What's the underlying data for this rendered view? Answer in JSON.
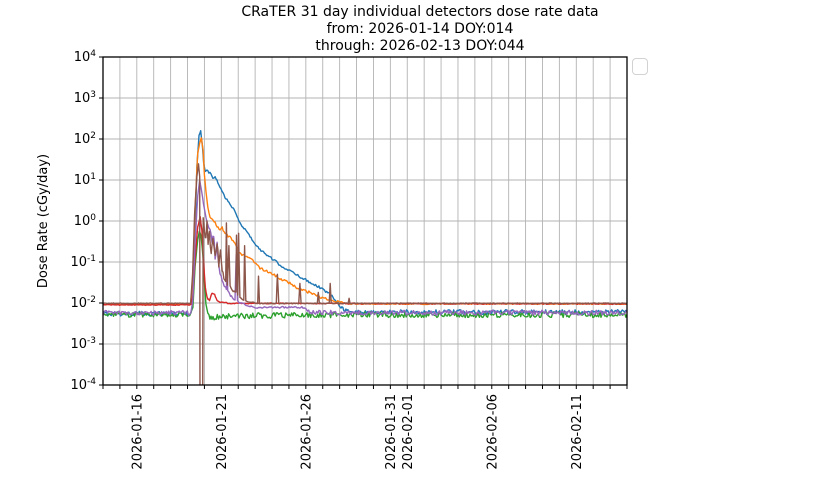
{
  "figure": {
    "title_line1": "CRaTER 31 day individual detectors dose rate data",
    "title_line2": "from: 2026-01-14 DOY:014",
    "title_line3": "through: 2026-02-13 DOY:044"
  },
  "legend": {
    "visible": true,
    "entries": []
  },
  "chart_data": {
    "type": "line",
    "title": "CRaTER 31 day individual detectors dose rate data from: 2026-01-14 DOY:014 through: 2026-02-13 DOY:044",
    "xlabel": "",
    "ylabel": "Dose Rate (cGy/day)",
    "yscale": "log",
    "ylim": [
      0.0001,
      10000
    ],
    "y_tick_exponents": [
      4,
      3,
      2,
      1,
      0,
      -1,
      -2,
      -3,
      -4
    ],
    "x_unit": "days since 2026-01-14 00:00",
    "xlim": [
      0,
      31
    ],
    "x_grid_interval_days": 1,
    "x_ticks": [
      {
        "day": 2,
        "label": "2026-01-16"
      },
      {
        "day": 7,
        "label": "2026-01-21"
      },
      {
        "day": 12,
        "label": "2026-01-26"
      },
      {
        "day": 17,
        "label": "2026-01-31"
      },
      {
        "day": 18,
        "label": "2026-02-01"
      },
      {
        "day": 23,
        "label": "2026-02-06"
      },
      {
        "day": 28,
        "label": "2026-02-11"
      }
    ],
    "grid": true,
    "grid_color": "#b3b3b3",
    "legend_position": "outside-top-right-empty",
    "event": {
      "description_visible_in_pixels": "solar energetic particle enhancement beginning near 2026-01-19 with peak near 2026-01-19/20, decaying to background by about 2026-01-29",
      "onset_day": 5.2,
      "peak_day": 5.8
    },
    "series": [
      {
        "name": "detector-line-blue",
        "color": "#1f77b4",
        "points": [
          [
            0,
            0.0055,
            0.06
          ],
          [
            5.2,
            0.0055,
            0.06
          ],
          [
            5.3,
            0.01,
            0.02
          ],
          [
            5.45,
            0.5,
            0.01
          ],
          [
            5.55,
            20,
            0.01
          ],
          [
            5.68,
            120,
            0.01
          ],
          [
            5.78,
            160,
            0.01
          ],
          [
            5.88,
            70,
            0.02
          ],
          [
            5.95,
            28,
            0.02
          ],
          [
            6.05,
            17,
            0.03
          ],
          [
            6.2,
            16,
            0.03
          ],
          [
            6.33,
            15,
            0.02
          ],
          [
            6.5,
            11,
            0.02
          ],
          [
            6.63,
            12,
            0.02
          ],
          [
            6.8,
            8.5,
            0.03
          ],
          [
            6.92,
            6.6,
            0.02
          ],
          [
            7.22,
            3.8,
            0.02
          ],
          [
            7.51,
            2.6,
            0.02
          ],
          [
            7.81,
            1.7,
            0.02
          ],
          [
            8.1,
            0.88,
            0.02
          ],
          [
            8.4,
            0.63,
            0.02
          ],
          [
            8.7,
            0.42,
            0.02
          ],
          [
            8.99,
            0.28,
            0.02
          ],
          [
            9.29,
            0.2,
            0.02
          ],
          [
            9.88,
            0.13,
            0.03
          ],
          [
            10.47,
            0.085,
            0.03
          ],
          [
            11.06,
            0.06,
            0.03
          ],
          [
            11.65,
            0.044,
            0.03
          ],
          [
            12.25,
            0.032,
            0.03
          ],
          [
            12.84,
            0.024,
            0.03
          ],
          [
            13.43,
            0.016,
            0.04
          ],
          [
            13.72,
            0.013,
            0.04
          ],
          [
            14.02,
            0.0085,
            0.04
          ],
          [
            14.31,
            0.0068,
            0.05
          ],
          [
            14.61,
            0.006,
            0.06
          ],
          [
            31,
            0.006,
            0.06
          ]
        ]
      },
      {
        "name": "detector-line-orange",
        "color": "#ff7f0e",
        "points": [
          [
            0,
            0.0092,
            0.012
          ],
          [
            5.18,
            0.0092,
            0.012
          ],
          [
            5.3,
            0.03,
            0.01
          ],
          [
            5.45,
            2,
            0.01
          ],
          [
            5.6,
            45,
            0.01
          ],
          [
            5.72,
            80,
            0.01
          ],
          [
            5.82,
            105,
            0.01
          ],
          [
            5.92,
            55,
            0.01
          ],
          [
            6.0,
            14,
            0.02
          ],
          [
            6.09,
            5.5,
            0.02
          ],
          [
            6.2,
            2.2,
            0.02
          ],
          [
            6.33,
            1.26,
            0.02
          ],
          [
            6.63,
            0.95,
            0.03
          ],
          [
            6.75,
            0.75,
            0.03
          ],
          [
            6.92,
            0.62,
            0.03
          ],
          [
            7.05,
            0.68,
            0.03
          ],
          [
            7.22,
            0.48,
            0.03
          ],
          [
            7.51,
            0.4,
            0.03
          ],
          [
            7.81,
            0.3,
            0.03
          ],
          [
            8.1,
            0.16,
            0.03
          ],
          [
            8.4,
            0.14,
            0.03
          ],
          [
            8.7,
            0.12,
            0.03
          ],
          [
            8.99,
            0.1,
            0.03
          ],
          [
            9.29,
            0.07,
            0.03
          ],
          [
            9.88,
            0.055,
            0.03
          ],
          [
            10.47,
            0.04,
            0.03
          ],
          [
            11.06,
            0.03,
            0.03
          ],
          [
            11.65,
            0.021,
            0.03
          ],
          [
            12.25,
            0.018,
            0.03
          ],
          [
            12.84,
            0.014,
            0.03
          ],
          [
            13.43,
            0.012,
            0.03
          ],
          [
            14.02,
            0.0105,
            0.02
          ],
          [
            14.61,
            0.0095,
            0.012
          ],
          [
            31,
            0.0095,
            0.012
          ]
        ]
      },
      {
        "name": "detector-line-green",
        "color": "#2ca02c",
        "points": [
          [
            0,
            0.0052,
            0.06
          ],
          [
            5.2,
            0.0052,
            0.06
          ],
          [
            5.32,
            0.008,
            0.02
          ],
          [
            5.45,
            0.08,
            0.01
          ],
          [
            5.6,
            0.35,
            0.01
          ],
          [
            5.7,
            0.55,
            0.01
          ],
          [
            5.8,
            0.45,
            0.01
          ],
          [
            5.92,
            0.12,
            0.02
          ],
          [
            6.0,
            0.03,
            0.02
          ],
          [
            6.09,
            0.009,
            0.03
          ],
          [
            6.2,
            0.0055,
            0.04
          ],
          [
            6.33,
            0.0042,
            0.06
          ],
          [
            6.63,
            0.0046,
            0.07
          ],
          [
            7.5,
            0.0047,
            0.07
          ],
          [
            9,
            0.0049,
            0.07
          ],
          [
            12,
            0.005,
            0.07
          ],
          [
            15,
            0.0052,
            0.07
          ],
          [
            31,
            0.0052,
            0.07
          ]
        ]
      },
      {
        "name": "detector-line-red",
        "color": "#d62728",
        "points": [
          [
            0,
            0.009,
            0.012
          ],
          [
            5.2,
            0.009,
            0.012
          ],
          [
            5.32,
            0.015,
            0.01
          ],
          [
            5.45,
            0.12,
            0.01
          ],
          [
            5.6,
            0.7,
            0.01
          ],
          [
            5.75,
            1.25,
            0.01
          ],
          [
            5.85,
            0.6,
            0.01
          ],
          [
            5.95,
            0.1,
            0.02
          ],
          [
            6.05,
            0.025,
            0.02
          ],
          [
            6.15,
            0.014,
            0.02
          ],
          [
            6.3,
            0.011,
            0.02
          ],
          [
            6.45,
            0.018,
            0.02
          ],
          [
            6.6,
            0.016,
            0.02
          ],
          [
            6.75,
            0.012,
            0.02
          ],
          [
            6.92,
            0.0105,
            0.015
          ],
          [
            7.5,
            0.0098,
            0.012
          ],
          [
            31,
            0.0095,
            0.012
          ]
        ]
      },
      {
        "name": "detector-line-purple",
        "color": "#9467bd",
        "points": [
          [
            0,
            0.0057,
            0.06
          ],
          [
            5.2,
            0.0057,
            0.06
          ],
          [
            5.32,
            0.012,
            0.02
          ],
          [
            5.45,
            0.3,
            0.01
          ],
          [
            5.6,
            4,
            0.01
          ],
          [
            5.72,
            10,
            0.01
          ],
          [
            5.82,
            6,
            0.02
          ],
          [
            5.95,
            2.5,
            0.02
          ],
          [
            6.09,
            1.2,
            0.03
          ],
          [
            6.2,
            0.8,
            0.04
          ],
          [
            6.33,
            0.67,
            0.04
          ],
          [
            6.45,
            0.3,
            0.08
          ],
          [
            6.55,
            0.45,
            0.08
          ],
          [
            6.63,
            0.12,
            0.08
          ],
          [
            6.75,
            0.28,
            0.08
          ],
          [
            6.85,
            0.08,
            0.06
          ],
          [
            6.92,
            0.05,
            0.05
          ],
          [
            7.05,
            0.035,
            0.05
          ],
          [
            7.22,
            0.025,
            0.05
          ],
          [
            7.3,
            0.02,
            0.05
          ],
          [
            7.34,
            0.1,
            0
          ],
          [
            7.38,
            0.018,
            0.05
          ],
          [
            7.6,
            0.015,
            0.04
          ],
          [
            7.81,
            0.012,
            0.04
          ],
          [
            7.88,
            0.15,
            0
          ],
          [
            7.96,
            0.011,
            0.04
          ],
          [
            8.1,
            0.0105,
            0.03
          ],
          [
            8.4,
            0.009,
            0.02
          ],
          [
            8.7,
            0.0082,
            0.02
          ],
          [
            9,
            0.0078,
            0.02
          ],
          [
            11.9,
            0.0078,
            0.02
          ],
          [
            12.1,
            0.006,
            0.05
          ],
          [
            12.5,
            0.0058,
            0.06
          ],
          [
            31,
            0.0058,
            0.06
          ]
        ]
      },
      {
        "name": "detector-line-brown",
        "color": "#8c564b",
        "points": [
          [
            0,
            0.0098,
            0.012
          ],
          [
            5.18,
            0.0098,
            0.012
          ],
          [
            5.3,
            0.05,
            0.01
          ],
          [
            5.42,
            1.5,
            0.01
          ],
          [
            5.55,
            12,
            0.01
          ],
          [
            5.65,
            25,
            0.01
          ],
          [
            5.72,
            12,
            0
          ],
          [
            5.74,
            5e-05,
            0
          ],
          [
            5.9,
            5e-05,
            0
          ],
          [
            5.93,
            1.2,
            0
          ],
          [
            6.0,
            0.6,
            0.05
          ],
          [
            6.09,
            0.35,
            0.08
          ],
          [
            6.15,
            0.9,
            0.05
          ],
          [
            6.22,
            0.3,
            0.08
          ],
          [
            6.3,
            0.5,
            0.08
          ],
          [
            6.4,
            0.15,
            0.1
          ],
          [
            6.5,
            0.45,
            0.08
          ],
          [
            6.63,
            0.12,
            0.1
          ],
          [
            6.75,
            0.3,
            0.08
          ],
          [
            6.85,
            0.09,
            0.1
          ],
          [
            6.95,
            0.18,
            0.08
          ],
          [
            7.05,
            0.06,
            0.08
          ],
          [
            7.15,
            0.04,
            0.06
          ],
          [
            7.26,
            0.035,
            0.05
          ],
          [
            7.3,
            0.9,
            0
          ],
          [
            7.36,
            0.03,
            0.05
          ],
          [
            7.45,
            0.25,
            0
          ],
          [
            7.52,
            0.025,
            0.04
          ],
          [
            7.7,
            0.02,
            0.03
          ],
          [
            7.86,
            0.018,
            0.02
          ],
          [
            7.9,
            0.45,
            0
          ],
          [
            7.97,
            0.016,
            0.02
          ],
          [
            8.02,
            0.5,
            0
          ],
          [
            8.1,
            0.014,
            0.02
          ],
          [
            8.33,
            0.012,
            0.02
          ],
          [
            8.38,
            0.25,
            0
          ],
          [
            8.45,
            0.011,
            0.015
          ],
          [
            8.8,
            0.0105,
            0.012
          ],
          [
            9.15,
            0.0098,
            0.012
          ],
          [
            9.2,
            0.045,
            0
          ],
          [
            9.26,
            0.0098,
            0.012
          ],
          [
            10.25,
            0.0098,
            0.012
          ],
          [
            10.32,
            0.05,
            0
          ],
          [
            10.4,
            0.0098,
            0.012
          ],
          [
            11.58,
            0.0098,
            0.012
          ],
          [
            11.65,
            0.03,
            0
          ],
          [
            11.72,
            0.0098,
            0.012
          ],
          [
            12.68,
            0.0098,
            0.012
          ],
          [
            12.74,
            0.018,
            0
          ],
          [
            12.8,
            0.0098,
            0.012
          ],
          [
            13.38,
            0.0098,
            0.012
          ],
          [
            13.44,
            0.03,
            0
          ],
          [
            13.5,
            0.0098,
            0.012
          ],
          [
            14.5,
            0.0098,
            0.012
          ],
          [
            14.56,
            0.013,
            0
          ],
          [
            14.62,
            0.0098,
            0.012
          ],
          [
            31,
            0.0098,
            0.012
          ]
        ]
      }
    ]
  }
}
